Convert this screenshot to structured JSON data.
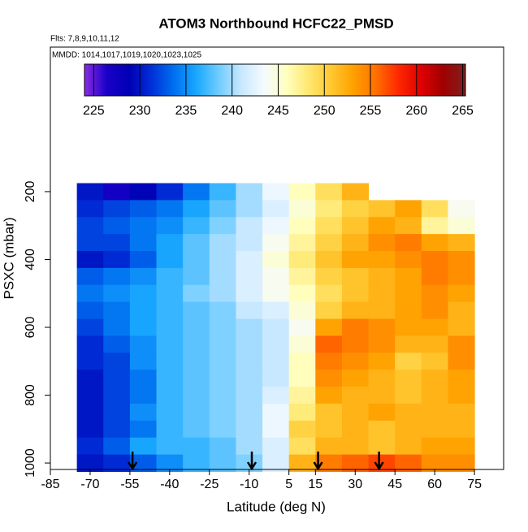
{
  "chart_data": {
    "type": "heatmap",
    "title": "ATOM3 Northbound HCFC22_PMSD",
    "subtitle": "Flts: 7,8,9,10,11,12",
    "annotation": "MMDD: 1014,1017,1019,1020,1023,1025",
    "xlabel": "Latitude (deg N)",
    "ylabel": "PSXC (mbar)",
    "xlim": [
      -85,
      86
    ],
    "ylim": [
      1019,
      -226
    ],
    "xticks": [
      -85,
      -70,
      -55,
      -40,
      -25,
      -10,
      5,
      15,
      30,
      45,
      60,
      75
    ],
    "yticks": [
      200,
      400,
      600,
      800,
      1000
    ],
    "zlim": [
      224,
      265.3
    ],
    "zticks": [
      225,
      230,
      235,
      240,
      245,
      250,
      255,
      260,
      265
    ],
    "colormap": [
      "#8a2be2",
      "#1a00c8",
      "#0000b4",
      "#0030d8",
      "#0070f0",
      "#1aa8ff",
      "#70ccff",
      "#c8e8ff",
      "#f4faff",
      "#ffffc0",
      "#ffe870",
      "#ffc830",
      "#ffa000",
      "#ff7000",
      "#ff2800",
      "#e00000",
      "#a00000",
      "#802020"
    ],
    "x_edges": [
      -75,
      -65,
      -55,
      -45,
      -35,
      -25,
      -15,
      -5,
      5,
      15,
      25,
      35,
      45,
      55,
      65,
      75
    ],
    "y_edges": [
      175,
      225,
      275,
      325,
      375,
      425,
      475,
      525,
      575,
      625,
      675,
      725,
      775,
      825,
      875,
      925,
      975,
      1025
    ],
    "z": [
      [
        230,
        227,
        229,
        231,
        234,
        237,
        240,
        243,
        246,
        249,
        252,
        null,
        null,
        null,
        null
      ],
      [
        231,
        232,
        233,
        234,
        236,
        238,
        240,
        242,
        245,
        248,
        250,
        251,
        253,
        249,
        244
      ],
      [
        232,
        233,
        234,
        235,
        237,
        239,
        241,
        243,
        246,
        249,
        251,
        253,
        252,
        247,
        245
      ],
      [
        232,
        232,
        234,
        236,
        238,
        240,
        241,
        244,
        247,
        250,
        252,
        254,
        255,
        253,
        252
      ],
      [
        230,
        231,
        233,
        236,
        238,
        240,
        242,
        245,
        248,
        251,
        253,
        253,
        254,
        255,
        254
      ],
      [
        233,
        234,
        235,
        237,
        238,
        240,
        242,
        244,
        247,
        250,
        251,
        252,
        253,
        255,
        254
      ],
      [
        234,
        235,
        236,
        237,
        239,
        240,
        242,
        244,
        246,
        249,
        251,
        252,
        253,
        254,
        253
      ],
      [
        233,
        234,
        236,
        237,
        238,
        239,
        241,
        242,
        245,
        250,
        252,
        252,
        253,
        254,
        252
      ],
      [
        232,
        234,
        236,
        237,
        238,
        239,
        240,
        241,
        244,
        253,
        255,
        254,
        253,
        253,
        252
      ],
      [
        231,
        233,
        235,
        237,
        238,
        239,
        240,
        241,
        245,
        256,
        255,
        254,
        252,
        252,
        254
      ],
      [
        231,
        232,
        235,
        237,
        238,
        239,
        240,
        241,
        246,
        255,
        254,
        253,
        250,
        251,
        254
      ],
      [
        230,
        232,
        234,
        237,
        238,
        239,
        240,
        241,
        246,
        254,
        253,
        252,
        251,
        252,
        253
      ],
      [
        230,
        232,
        234,
        237,
        238,
        239,
        240,
        242,
        247,
        253,
        252,
        252,
        251,
        252,
        253
      ],
      [
        230,
        232,
        235,
        237,
        238,
        239,
        240,
        243,
        248,
        251,
        252,
        253,
        252,
        252,
        252
      ],
      [
        230,
        232,
        234,
        237,
        238,
        239,
        240,
        243,
        250,
        251,
        252,
        251,
        252,
        252,
        252
      ],
      [
        231,
        233,
        236,
        237,
        237,
        238,
        240,
        242,
        249,
        252,
        252,
        251,
        252,
        253,
        253
      ],
      [
        230,
        231,
        233,
        235,
        237,
        238,
        239,
        242,
        252,
        255,
        256,
        257,
        256,
        254,
        254
      ]
    ],
    "arrows_x": [
      -54,
      -9,
      16,
      39
    ]
  }
}
